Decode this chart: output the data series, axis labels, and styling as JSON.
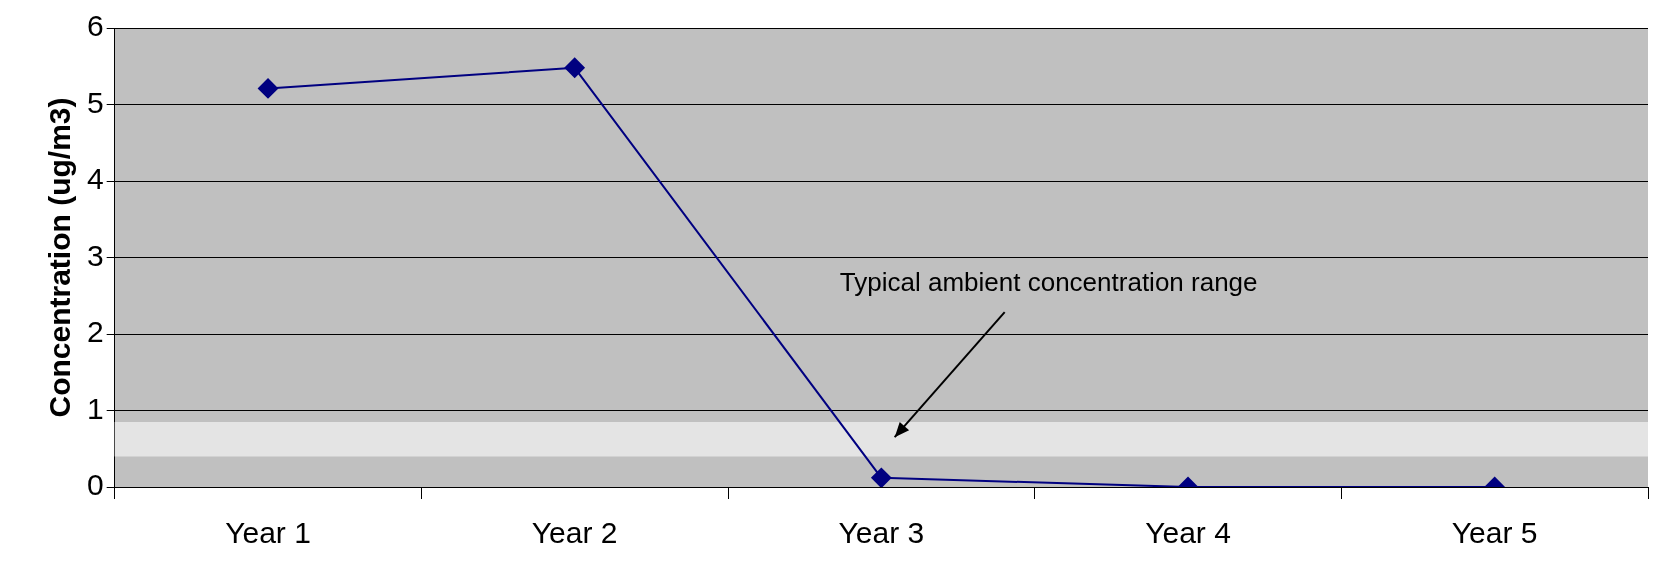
{
  "chart_data": {
    "type": "line",
    "ylabel": "Concentration (ug/m3)",
    "categories": [
      "Year 1",
      "Year 2",
      "Year 3",
      "Year 4",
      "Year 5"
    ],
    "series": [
      {
        "color": "#000080",
        "values": [
          5.21,
          5.48,
          0.12,
          0,
          0
        ]
      }
    ],
    "ylim": [
      0,
      6
    ],
    "yticks": [
      0,
      1,
      2,
      3,
      4,
      5,
      6
    ],
    "grid": "y",
    "legend": false,
    "marker": "diamond",
    "line_style": "solid",
    "bands": [
      {
        "axis": "y",
        "from": 0.4,
        "to": 0.85,
        "label": "Typical ambient concentration range",
        "color": "#e4e4e4"
      }
    ]
  }
}
